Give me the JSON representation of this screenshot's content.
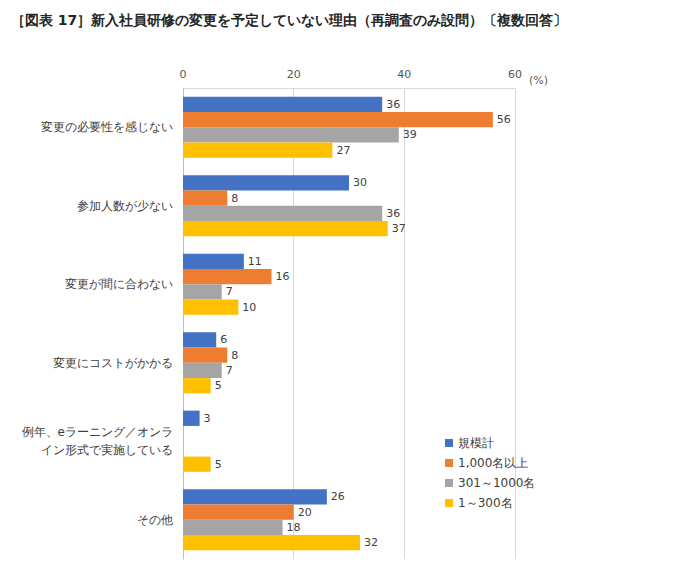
{
  "chart_data": {
    "type": "bar",
    "title": "［図表 17］新入社員研修の変更を予定していない理由（再調査のみ設問）〔複数回答〕",
    "orientation": "horizontal",
    "categories": [
      "変更の必要性を感じない",
      "参加人数が少ない",
      "変更が間に合わない",
      "変更にコストがかかる",
      "例年、eラーニング／オンライン形式で実施している",
      "その他"
    ],
    "series": [
      {
        "name": "規模計",
        "color": "#4472c4",
        "values": [
          36,
          30,
          11,
          6,
          3,
          26
        ]
      },
      {
        "name": "1,000名以上",
        "color": "#ed7d31",
        "values": [
          56,
          8,
          16,
          8,
          null,
          20
        ]
      },
      {
        "name": "301～1000名",
        "color": "#a5a5a5",
        "values": [
          39,
          36,
          7,
          7,
          null,
          18
        ]
      },
      {
        "name": "1～300名",
        "color": "#ffc000",
        "values": [
          27,
          37,
          10,
          5,
          5,
          32
        ]
      }
    ],
    "xlim": [
      0,
      60
    ],
    "xticks": [
      0,
      20,
      40,
      60
    ],
    "xlabel": "(%)",
    "grid": true,
    "legend": "lower right",
    "data_labels": true
  }
}
